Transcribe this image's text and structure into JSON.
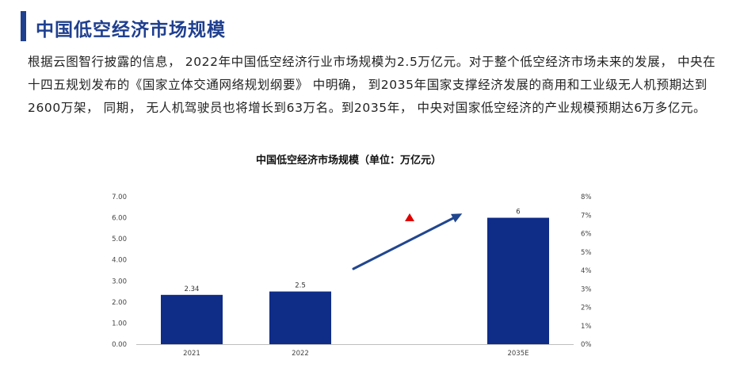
{
  "header": {
    "title": "中国低空经济市场规模"
  },
  "body_text": "根据云图智行披露的信息， 2022年中国低空经济行业市场规模为2.5万亿元。对于整个低空经济市场未来的发展， 中央在十四五规划发布的《国家立体交通网络规划纲要》 中明确， 到2035年国家支撑经济发展的商用和工业级无人机预期达到2600万架， 同期， 无人机驾驶员也将增长到63万名。到2035年， 中央对国家低空经济的产业规模预期达6万多亿元。",
  "colors": {
    "accent": "#1f3f8f",
    "bar": "#0f2c87",
    "arrow": "#21468f",
    "marker": "#e00000"
  },
  "chart_data": {
    "type": "bar",
    "title": "中国低空经济市场规模（单位：万亿元）",
    "categories": [
      "2021",
      "2022",
      "",
      "2035E"
    ],
    "values": [
      2.34,
      2.5,
      null,
      6
    ],
    "data_labels": [
      "2.34",
      "2.5",
      "",
      "6"
    ],
    "ylim": [
      0,
      7
    ],
    "y_ticks": [
      "0.00",
      "1.00",
      "2.00",
      "3.00",
      "4.00",
      "5.00",
      "6.00",
      "7.00"
    ],
    "y2lim": [
      0,
      8
    ],
    "y2_ticks": [
      "0%",
      "1%",
      "2%",
      "3%",
      "4%",
      "5%",
      "6%",
      "7%",
      "8%"
    ],
    "annotations": [
      "up-arrow",
      "red-triangle-marker"
    ],
    "grid": false,
    "legend": "none"
  }
}
